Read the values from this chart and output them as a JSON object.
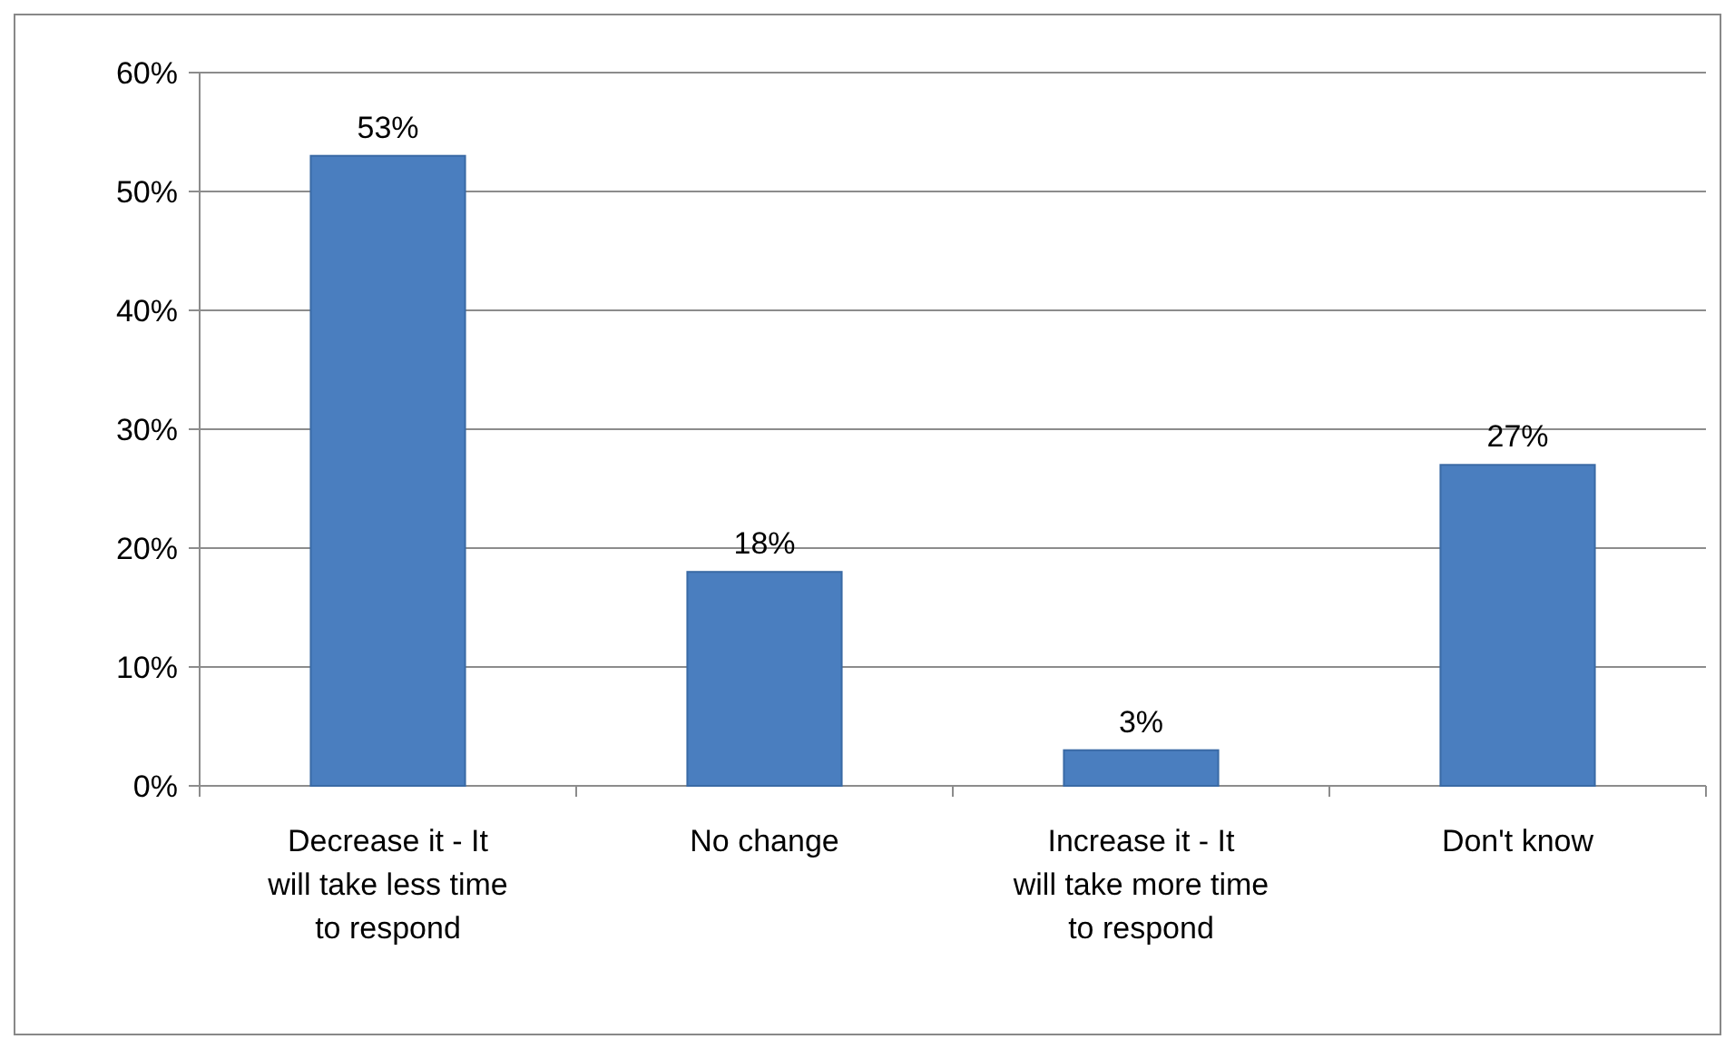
{
  "chart_data": {
    "type": "bar",
    "categories": [
      "Decrease it - It will take less time to respond",
      "No change",
      "Increase it - It will take more time to respond",
      "Don't know"
    ],
    "values": [
      53,
      18,
      3,
      27
    ],
    "value_labels": [
      "53%",
      "18%",
      "3%",
      "27%"
    ],
    "color": "#4a7ebf",
    "ylim": [
      0,
      60
    ],
    "yticks": [
      {
        "value": 0,
        "label": "0%"
      },
      {
        "value": 10,
        "label": "10%"
      },
      {
        "value": 20,
        "label": "20%"
      },
      {
        "value": 30,
        "label": "30%"
      },
      {
        "value": 40,
        "label": "40%"
      },
      {
        "value": 50,
        "label": "50%"
      },
      {
        "value": 60,
        "label": "60%"
      }
    ],
    "grid": "y"
  }
}
